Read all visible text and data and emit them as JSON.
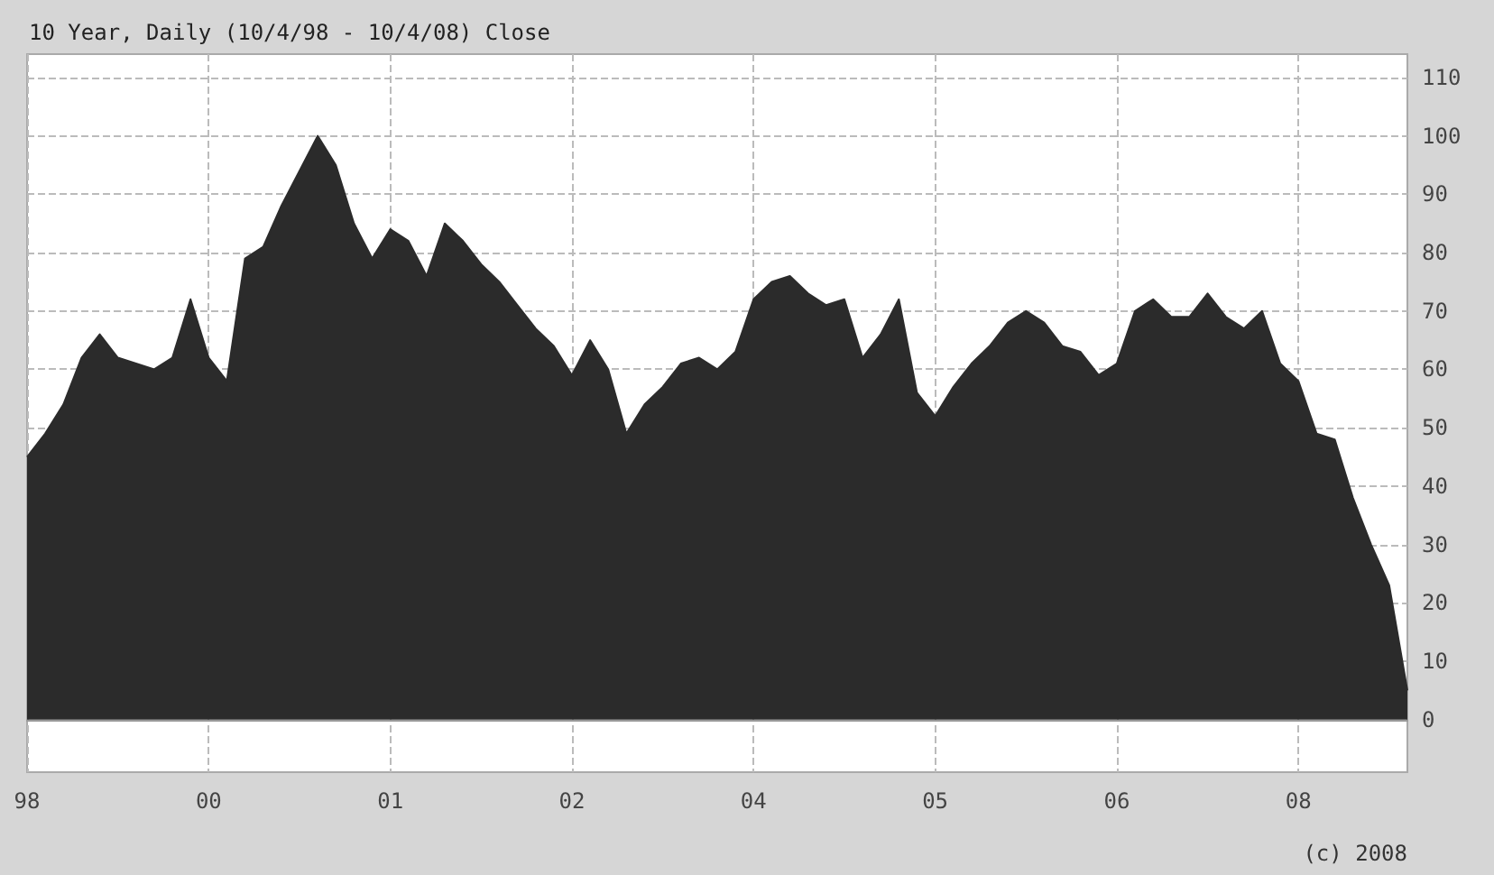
{
  "chart_data": {
    "type": "area",
    "title": "10 Year, Daily (10/4/98 - 10/4/08) Close",
    "categories": [
      "98",
      null,
      null,
      null,
      null,
      null,
      null,
      null,
      null,
      null,
      "00",
      null,
      null,
      null,
      null,
      null,
      null,
      null,
      null,
      null,
      "01",
      null,
      null,
      null,
      null,
      null,
      null,
      null,
      null,
      null,
      "02",
      null,
      null,
      null,
      null,
      null,
      null,
      null,
      null,
      null,
      "04",
      null,
      null,
      null,
      null,
      null,
      null,
      null,
      null,
      null,
      "05",
      null,
      null,
      null,
      null,
      null,
      null,
      null,
      null,
      null,
      "06",
      null,
      null,
      null,
      null,
      null,
      null,
      null,
      null,
      null,
      "08",
      null,
      null,
      null,
      null,
      null,
      null
    ],
    "series": [
      {
        "color": "#2b2b2b",
        "values": [
          45,
          49,
          54,
          62,
          66,
          62,
          61,
          60,
          62,
          72,
          62,
          58,
          79,
          81,
          88,
          94,
          100,
          95,
          85,
          79,
          84,
          82,
          76,
          85,
          82,
          78,
          75,
          71,
          67,
          64,
          59,
          65,
          60,
          49,
          54,
          57,
          61,
          62,
          60,
          63,
          72,
          75,
          76,
          73,
          71,
          72,
          62,
          66,
          72,
          56,
          52,
          57,
          61,
          64,
          68,
          70,
          68,
          64,
          63,
          59,
          61,
          70,
          72,
          69,
          69,
          73,
          69,
          67,
          70,
          61,
          58,
          49,
          48,
          38,
          30,
          23,
          5
        ]
      }
    ],
    "ylim": [
      -9,
      114
    ],
    "yticks": [
      0,
      10,
      20,
      30,
      40,
      50,
      60,
      70,
      80,
      90,
      100,
      110
    ],
    "grid": true,
    "annotations": [
      "(c) 2008"
    ]
  }
}
